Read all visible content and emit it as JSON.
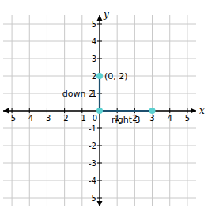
{
  "chart_data": {
    "type": "line",
    "x_label": "x",
    "y_label": "y",
    "xlim": [
      -5.5,
      5.5
    ],
    "ylim": [
      -5.5,
      5.5
    ],
    "xticks": [
      -5,
      -4,
      -3,
      -2,
      -1,
      0,
      1,
      2,
      3,
      4,
      5
    ],
    "yticks": [
      -5,
      -4,
      -3,
      -2,
      -1,
      0,
      1,
      2,
      3,
      4,
      5
    ],
    "grid": true,
    "series": [
      {
        "x": [
          0,
          0,
          3
        ],
        "values": [
          2,
          0,
          0
        ],
        "color": "#5ad0d0",
        "marker": "circle",
        "line_style": "solid"
      }
    ],
    "annotations": [
      {
        "text": "(0, 2)",
        "x": 0,
        "y": 2
      },
      {
        "text": "down 2",
        "x": 0,
        "y": 1
      },
      {
        "text": "right 3",
        "x": 1.5,
        "y": 0
      }
    ]
  }
}
